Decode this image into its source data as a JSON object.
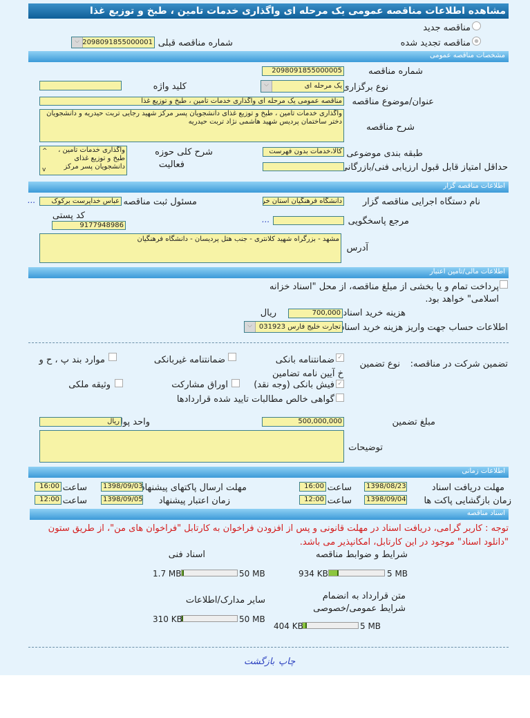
{
  "title": "مشاهده اطلاعات مناقصه عمومی یک مرحله ای واگذاری خدمات تامین ، طبخ و توزیع غذا",
  "tender_type": {
    "new_label": "مناقصه جدید",
    "renewed_label": "مناقصه تجدید شده",
    "selected": "renewed",
    "previous_number_label": "شماره مناقصه قبلی",
    "previous_number": "2098091855000001"
  },
  "general": {
    "header": "مشخصات مناقصه عمومی",
    "number_label": "شماره مناقصه",
    "number": "2098091855000005",
    "holding_type_label": "نوع برگزاری",
    "holding_type": "یک مرحله ای",
    "keyword_label": "کلید واژه",
    "keyword": "",
    "subject_label": "عنوان/موضوع مناقصه",
    "subject": "مناقصه عمومی یک مرحله ای واگذاری خدمات تامین ، طبخ و توزیع غذا",
    "description_label": "شرح مناقصه",
    "description": "واگذاری خدمات تامین ، طبخ و توزیع غذای دانشجویان پسر مرکز شهید رجایی تربت حیدریه و دانشجویان دختر ساختمان پردیس شهید هاشمی نژاد تربت حیدریه",
    "category_label": "طبقه بندی موضوعی",
    "category": "کالا،خدمات بدون فهرست",
    "activity_label_1": "شرح کلی حوزه",
    "activity_label_2": "فعالیت",
    "activity": "واگذاری خدمات تامین ، طبخ و توزیع غذای دانشجویان پسر مرکز",
    "min_score_label": "حداقل امتیاز قابل قبول ارزیابی فنی/بازرگانی",
    "min_score": ""
  },
  "organizer": {
    "header": "اطلاعات مناقصه گزار",
    "org_label": "نام دستگاه اجرایی مناقصه گزار",
    "org": "دانشگاه فرهنگیان استان خراسان رضوی",
    "registrar_label": "مسئول ثبت مناقصه",
    "registrar": "عباس خداپرست برکوک",
    "more": "...",
    "postal_label": "کد پستی",
    "postal": "9177948986",
    "reference_label": "مرجع پاسخگویی",
    "reference": "",
    "address_label": "آدرس",
    "address": "مشهد - بزرگراه شهید کلانتری - جنب هتل پردیسان - دانشگاه فرهنگیان"
  },
  "finance": {
    "header": "اطلاعات مالی/تامین اعتبار",
    "treasury_text": "پرداخت تمام و یا بخشی از مبلغ مناقصه، از محل \"اسناد خزانه اسلامی\" خواهد بود.",
    "treasury_checked": false,
    "doc_fee_label": "هزینه خرید اسناد",
    "doc_fee": "700,000",
    "currency": "ریال",
    "account_label": "اطلاعات حساب جهت واریز هزینه خرید اسناد",
    "account": "تجارت خلیج فارس 031923"
  },
  "guarantee": {
    "label": "تضمین شرکت در مناقصه:",
    "type_label": "نوع تضمین",
    "options": [
      {
        "label": "ضمانتنامه بانکی",
        "checked": true
      },
      {
        "label": "ضمانتنامه غیربانکی",
        "checked": false
      },
      {
        "label": "موارد بند پ ، ح و",
        "checked": false
      },
      {
        "label": "خ آیین نامه تضامین"
      },
      {
        "label": "فیش بانکی (وجه نقد)",
        "checked": true
      },
      {
        "label": "اوراق مشارکت",
        "checked": false
      },
      {
        "label": "وثیقه ملکی",
        "checked": false
      },
      {
        "label": "گواهی خالص مطالبات تایید شده قراردادها",
        "checked": false
      }
    ],
    "amount_label": "مبلغ تضمین",
    "amount": "500,000,000",
    "unit_label": "واحد پول",
    "unit": "ریال",
    "notes_label": "توضیحات",
    "notes": ""
  },
  "timing": {
    "header": "اطلاعات زمانی",
    "hour_label": "ساعت",
    "doc_deadline_label": "مهلت دریافت اسناد",
    "doc_deadline_date": "1398/08/23",
    "doc_deadline_time": "16:00",
    "submit_label": "مهلت ارسال پاکتهای پیشنهاد",
    "submit_date": "1398/09/03",
    "submit_time": "16:00",
    "opening_label": "زمان بازگشایی پاکت ها",
    "opening_date": "1398/09/04",
    "opening_time": "12:00",
    "validity_label": "زمان اعتبار پیشنهاد",
    "validity_date": "1398/09/05",
    "validity_time": "12:00"
  },
  "documents": {
    "header": "اسناد مناقصه",
    "notice": "توجه : کاربر گرامی، دریافت اسناد در مهلت قانونی و پس از افزودن فراخوان به کارتابل \"فراخوان های من\"، از طریق ستون \"دانلود اسناد\" موجود در این کارتابل، امکانپذیر می باشد.",
    "items": [
      {
        "label": "شرایط و ضوابط مناقصه",
        "size": "934 KB",
        "max": "5 MB",
        "fill_percent": 18
      },
      {
        "label": "اسناد فنی",
        "size": "1.7 MB",
        "max": "50 MB",
        "fill_percent": 3.4
      },
      {
        "label": "متن قرارداد به انضمام شرایط عمومی/خصوصی",
        "size": "404 KB",
        "max": "5 MB",
        "fill_percent": 8
      },
      {
        "label": "سایر مدارک/اطلاعات",
        "size": "310 KB",
        "max": "50 MB",
        "fill_percent": 1
      }
    ]
  },
  "footer": {
    "print": "چاپ",
    "back": "بازگشت"
  }
}
